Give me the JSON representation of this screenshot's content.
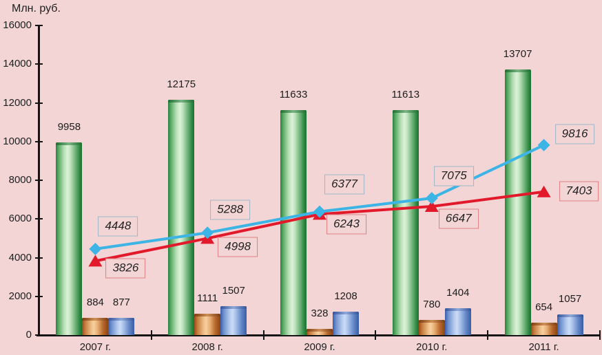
{
  "chart": {
    "ylabel": "Млн. руб.",
    "background": "#f3d5d5"
  },
  "chart_data": {
    "type": "bar",
    "combo": "bar+line",
    "title": "",
    "xlabel": "",
    "ylabel": "Млн. руб.",
    "ylim": [
      0,
      16000
    ],
    "ytick_step": 2000,
    "yticks": [
      0,
      2000,
      4000,
      6000,
      8000,
      10000,
      12000,
      14000,
      16000
    ],
    "grid": false,
    "legend": false,
    "categories": [
      "2007 г.",
      "2008 г.",
      "2009 г.",
      "2010 г.",
      "2011 г."
    ],
    "series": [
      {
        "name": "green-bars",
        "type": "bar",
        "color_class": "bar-green",
        "values": [
          9958,
          12175,
          11633,
          11613,
          13707
        ]
      },
      {
        "name": "orange-bars",
        "type": "bar",
        "color_class": "bar-orange",
        "values": [
          884,
          1111,
          328,
          780,
          654
        ]
      },
      {
        "name": "blue-bars",
        "type": "bar",
        "color_class": "bar-blue",
        "values": [
          877,
          1507,
          1208,
          1404,
          1057
        ]
      },
      {
        "name": "sky-line",
        "type": "line",
        "color": "#3cb4e5",
        "marker": "diamond",
        "callout_class": "c-blue",
        "values": [
          4448,
          5288,
          6377,
          7075,
          9816
        ]
      },
      {
        "name": "red-line",
        "type": "line",
        "color": "#e2192b",
        "marker": "triangle-up",
        "callout_class": "c-red",
        "values": [
          3826,
          4998,
          6243,
          6647,
          7403
        ]
      }
    ]
  }
}
